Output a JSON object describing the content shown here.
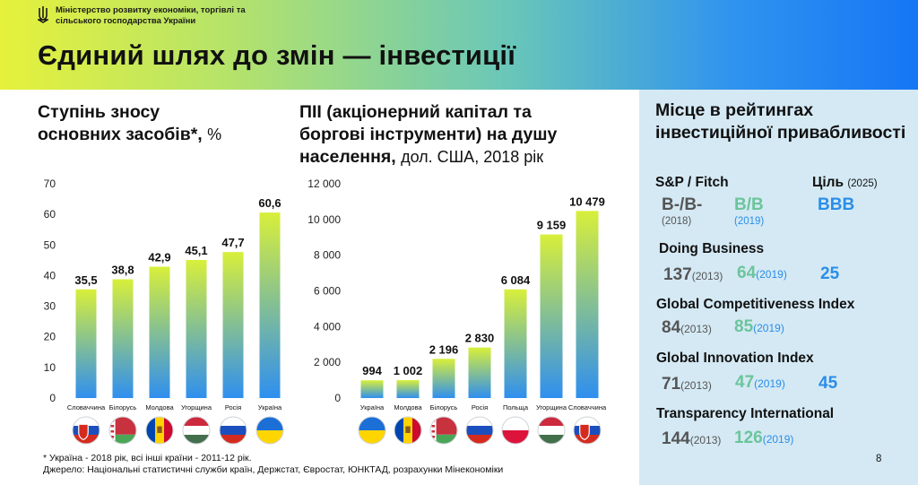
{
  "header": {
    "ministry": "Міністерство розвитку економіки, торгівлі та сільського господарства України",
    "ministry_line1": "Міністерство розвитку економіки, торгівлі та",
    "ministry_line2": "сільського господарства України",
    "title": "Єдиний шлях до змін — інвестиції"
  },
  "chart_data": [
    {
      "type": "bar",
      "title_line1": "Ступінь зносу",
      "title_line2": "основних засобів*,",
      "unit": "%",
      "categories": [
        "Словаччина",
        "Білорусь",
        "Молдова",
        "Угорщина",
        "Росія",
        "Україна"
      ],
      "values": [
        35.5,
        38.8,
        42.9,
        45.1,
        47.7,
        60.6
      ],
      "value_labels": [
        "35,5",
        "38,8",
        "42,9",
        "45,1",
        "47,7",
        "60,6"
      ],
      "yticks": [
        "0",
        "10",
        "20",
        "30",
        "40",
        "50",
        "60",
        "70"
      ],
      "ylim": [
        0,
        70
      ],
      "flags": [
        "sk",
        "by",
        "md",
        "hu",
        "ru",
        "ua"
      ]
    },
    {
      "type": "bar",
      "title_line1": "ПІІ (акціонерний капітал та",
      "title_line2": "боргові інструменти) на душу",
      "title_line3": "населення,",
      "unit": "дол. США, 2018 рік",
      "categories": [
        "Україна",
        "Молдова",
        "Білорусь",
        "Росія",
        "Польща",
        "Угорщина",
        "Словаччина"
      ],
      "values": [
        994,
        1002,
        2196,
        2830,
        6084,
        9159,
        10479
      ],
      "value_labels": [
        "994",
        "1 002",
        "2 196",
        "2 830",
        "6 084",
        "9 159",
        "10 479"
      ],
      "yticks": [
        "0",
        "2 000",
        "4 000",
        "6 000",
        "8 000",
        "10 000",
        "12 000"
      ],
      "ylim": [
        0,
        12000
      ],
      "flags": [
        "ua",
        "md",
        "by",
        "ru",
        "pl",
        "hu",
        "sk"
      ]
    }
  ],
  "ratings": {
    "title": "Місце в рейтингах інвестиційної привабливості",
    "sp": {
      "label": "S&P / Fitch",
      "v2018": "B-/B-",
      "y2018": "(2018)",
      "v2019": "B/B",
      "y2019": "(2019)",
      "goal_label": "Ціль",
      "goal_year": "(2025)",
      "goal_value": "BBB"
    },
    "doing_business": {
      "label": "Doing Business",
      "v1": "137",
      "y1": "(2013)",
      "v2": "64",
      "y2": "(2019)",
      "goal": "25"
    },
    "gci": {
      "label": "Global Competitiveness Index",
      "v1": "84",
      "y1": "(2013)",
      "v2": "85",
      "y2": "(2019)"
    },
    "gii": {
      "label": "Global Innovation Index",
      "v1": "71",
      "y1": "(2013)",
      "v2": "47",
      "y2": "(2019)",
      "goal": "45"
    },
    "ti": {
      "label": "Transparency International",
      "v1": "144",
      "y1": "(2013)",
      "v2": "126",
      "y2": "(2019)"
    }
  },
  "footnote": {
    "line1": "* Україна - 2018 рік, всі інші країни - 2011-12 рік.",
    "line2": "Джерело: Національні статистичні служби країн, Держстат, Євростат, ЮНКТАД, розрахунки Мінекономіки"
  },
  "page_number": "8",
  "colors": {
    "bar_top": "#d8ef3a",
    "bar_bottom": "#2f8fef",
    "gray": "#555555",
    "green": "#6cc49b",
    "blue": "#2a8ee8",
    "panel_bg": "#d4e9f4"
  }
}
